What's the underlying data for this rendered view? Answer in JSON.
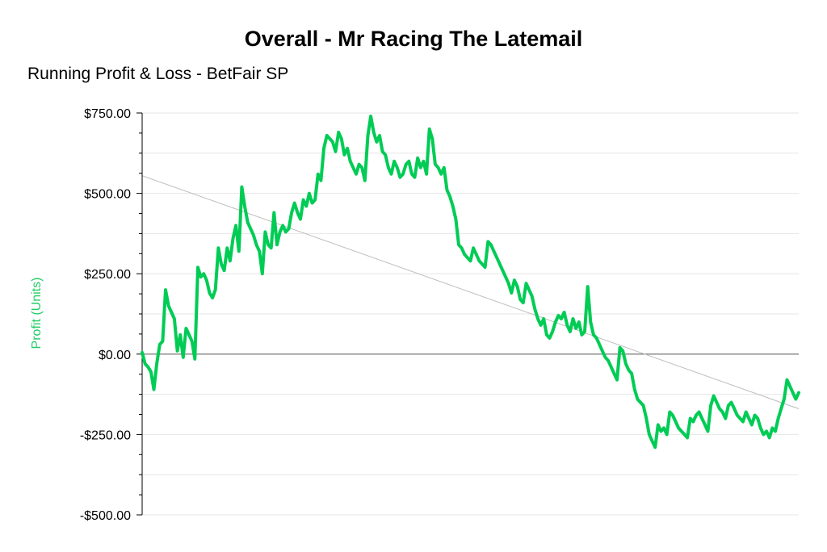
{
  "chart_data": {
    "type": "line",
    "title": "Overall - Mr Racing The Latemail",
    "subtitle": "Running Profit & Loss - BetFair SP",
    "xlabel": "",
    "ylabel": "Profit (Units)",
    "ylim": [
      -500,
      750
    ],
    "yticks": [
      750,
      500,
      250,
      0,
      -250,
      -500
    ],
    "ytick_labels": [
      "$750.00",
      "$500.00",
      "$250.00",
      "$0.00",
      "-$250.00",
      "-$500.00"
    ],
    "grid": true,
    "colors": {
      "series": "#00cc55",
      "ylabel": "#22cc66",
      "trend": "#bbbbbb",
      "grid": "#e6e6e6",
      "zero": "#666666"
    },
    "series": [
      {
        "values": [
          5,
          -30,
          -40,
          -55,
          -110,
          -30,
          30,
          40,
          200,
          150,
          130,
          110,
          10,
          60,
          -10,
          80,
          60,
          40,
          -15,
          270,
          240,
          250,
          230,
          190,
          175,
          200,
          330,
          280,
          260,
          330,
          290,
          360,
          400,
          320,
          520,
          460,
          410,
          390,
          370,
          340,
          320,
          250,
          380,
          340,
          330,
          440,
          340,
          380,
          400,
          380,
          390,
          440,
          470,
          440,
          420,
          480,
          460,
          500,
          470,
          480,
          560,
          540,
          640,
          680,
          670,
          660,
          630,
          690,
          670,
          620,
          640,
          600,
          580,
          560,
          590,
          580,
          540,
          680,
          740,
          690,
          660,
          680,
          630,
          620,
          580,
          560,
          600,
          580,
          550,
          560,
          590,
          600,
          560,
          550,
          610,
          580,
          600,
          560,
          700,
          670,
          590,
          580,
          560,
          580,
          510,
          490,
          460,
          420,
          340,
          330,
          310,
          300,
          290,
          330,
          310,
          290,
          280,
          270,
          350,
          340,
          320,
          300,
          280,
          260,
          240,
          220,
          190,
          230,
          210,
          170,
          160,
          220,
          200,
          180,
          140,
          110,
          90,
          110,
          60,
          50,
          70,
          100,
          120,
          110,
          130,
          90,
          70,
          110,
          80,
          100,
          60,
          70,
          210,
          100,
          60,
          50,
          30,
          10,
          -10,
          -20,
          -40,
          -60,
          -80,
          20,
          10,
          -30,
          -50,
          -60,
          -110,
          -140,
          -150,
          -160,
          -200,
          -250,
          -270,
          -290,
          -220,
          -240,
          -230,
          -250,
          -180,
          -190,
          -210,
          -230,
          -240,
          -250,
          -260,
          -200,
          -210,
          -190,
          -180,
          -200,
          -220,
          -240,
          -160,
          -130,
          -150,
          -170,
          -180,
          -200,
          -160,
          -150,
          -170,
          -190,
          -200,
          -210,
          -180,
          -200,
          -220,
          -190,
          -200,
          -230,
          -250,
          -240,
          -260,
          -230,
          -240,
          -200,
          -170,
          -140,
          -80,
          -100,
          -120,
          -140,
          -120
        ]
      }
    ],
    "trendline": {
      "start": 555,
      "end": -170
    }
  }
}
